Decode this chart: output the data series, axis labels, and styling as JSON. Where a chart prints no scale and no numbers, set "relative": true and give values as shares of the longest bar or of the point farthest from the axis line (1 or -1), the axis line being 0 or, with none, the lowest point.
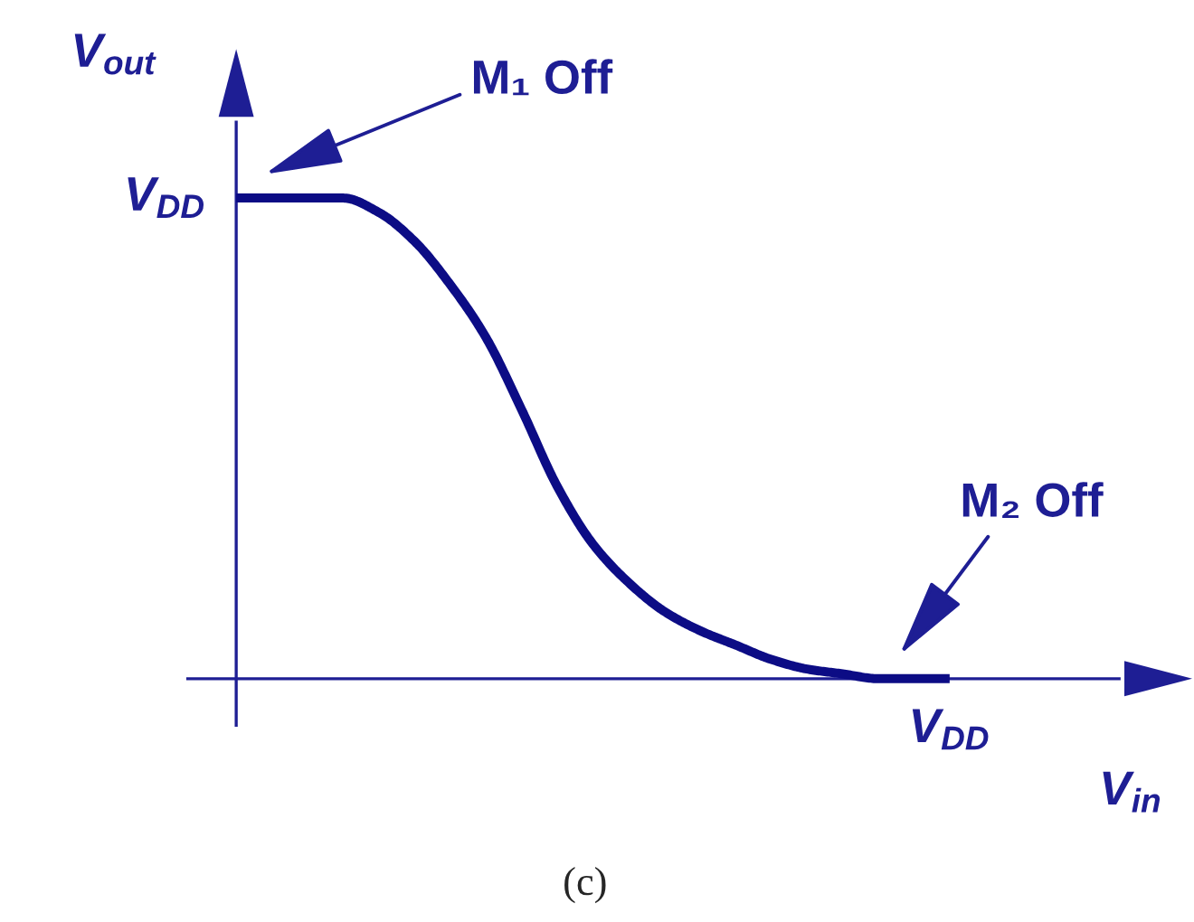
{
  "chart_data": {
    "type": "line",
    "relative": true,
    "xlabel": "V$_{in}$",
    "ylabel": "V$_{out}$",
    "categories": [
      null,
      null,
      null,
      null,
      null,
      null,
      null,
      null,
      null,
      null,
      null,
      null,
      null,
      null,
      null,
      null,
      null,
      null,
      null,
      null,
      null
    ],
    "series": [
      {
        "color": "#0c0c85",
        "values": [
          1,
          1,
          1,
          1,
          0.97,
          0.91,
          0.82,
          0.71,
          0.56,
          0.4,
          0.28,
          0.2,
          0.14,
          0.1,
          0.07,
          0.04,
          0.02,
          0.01,
          0,
          0,
          0
        ]
      }
    ],
    "annotations": [
      "V$_{DD}$",
      "M₁ Off",
      "M₂ Off",
      "V$_{DD}$",
      "(c)"
    ],
    "marker": "none",
    "line_style": "solid"
  }
}
